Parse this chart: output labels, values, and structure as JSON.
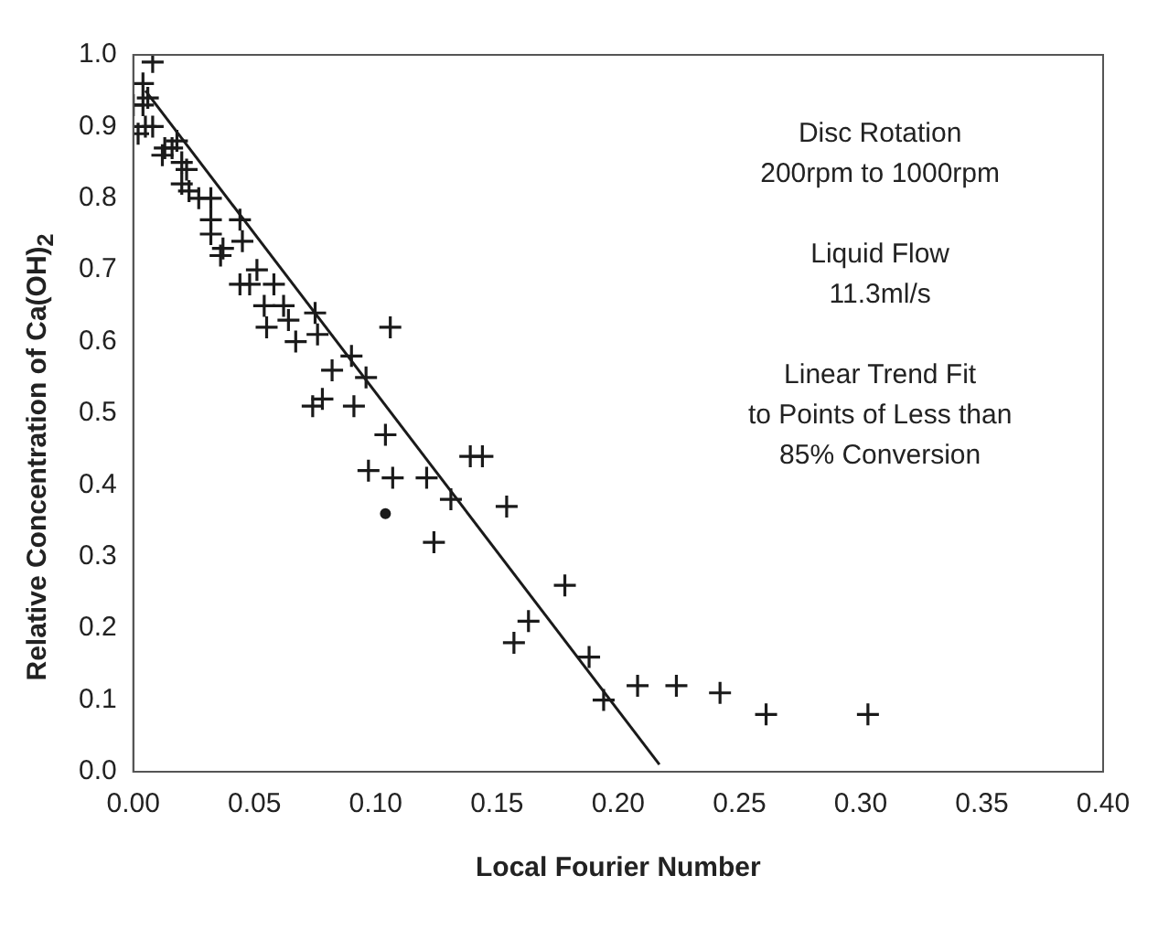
{
  "chart_data": {
    "type": "scatter",
    "xlabel": "Local Fourier Number",
    "ylabel": "Relative Concentration of Ca(OH)$_{2}$",
    "xlim": [
      0,
      0.4
    ],
    "ylim": [
      0,
      1
    ],
    "xticks": [
      {
        "value": 0,
        "label": "0.00"
      },
      {
        "value": 0.05,
        "label": "0.05"
      },
      {
        "value": 0.1,
        "label": "0.10"
      },
      {
        "value": 0.15,
        "label": "0.15"
      },
      {
        "value": 0.2,
        "label": "0.20"
      },
      {
        "value": 0.25,
        "label": "0.25"
      },
      {
        "value": 0.3,
        "label": "0.30"
      },
      {
        "value": 0.35,
        "label": "0.35"
      },
      {
        "value": 0.4,
        "label": "0.40"
      }
    ],
    "yticks": [
      {
        "value": 0,
        "label": "0.0"
      },
      {
        "value": 0.1,
        "label": "0.1"
      },
      {
        "value": 0.2,
        "label": "0.2"
      },
      {
        "value": 0.3,
        "label": "0.3"
      },
      {
        "value": 0.4,
        "label": "0.4"
      },
      {
        "value": 0.5,
        "label": "0.5"
      },
      {
        "value": 0.6,
        "label": "0.6"
      },
      {
        "value": 0.7,
        "label": "0.7"
      },
      {
        "value": 0.8,
        "label": "0.8"
      },
      {
        "value": 0.9,
        "label": "0.9"
      },
      {
        "value": 1,
        "label": "1.0"
      }
    ],
    "grid": false,
    "legend": false,
    "marker": "cross",
    "annotations": [
      "Disc Rotation\n200rpm to 1000rpm",
      "Liquid Flow\n11.3ml/s",
      "Linear Trend Fit\nto Points of Less than\n85% Conversion"
    ],
    "series": [
      {
        "type": "scatter",
        "color": "#1a1a1a",
        "x": [
          0.008,
          0.004,
          0,
          0.004,
          0.006,
          0.005,
          0.002,
          0.008,
          0.013,
          0.016,
          0.018,
          0.012,
          0.02,
          0.022,
          0.02,
          0.023,
          0.027,
          0.032,
          0.032,
          0.032,
          0.044,
          0.045,
          0.037,
          0.036,
          0.051,
          0.044,
          0.048,
          0.058,
          0.054,
          0.062,
          0.055,
          0.064,
          0.075,
          0.076,
          0.067,
          0.082,
          0.09,
          0.096,
          0.106,
          0.074,
          0.078,
          0.091,
          0.104,
          0.097,
          0.107,
          0.121,
          0.131,
          0.124,
          0.139,
          0.144,
          0.154,
          0.178,
          0.163,
          0.157,
          0.188,
          0.194,
          0.208,
          0.224,
          0.242,
          0.261,
          0.303
        ],
        "values": [
          0.99,
          0.96,
          0.93,
          0.93,
          0.94,
          0.9,
          0.89,
          0.9,
          0.87,
          0.87,
          0.88,
          0.86,
          0.85,
          0.84,
          0.82,
          0.81,
          0.8,
          0.8,
          0.77,
          0.75,
          0.77,
          0.74,
          0.73,
          0.72,
          0.7,
          0.68,
          0.68,
          0.68,
          0.65,
          0.65,
          0.62,
          0.63,
          0.64,
          0.61,
          0.6,
          0.56,
          0.58,
          0.55,
          0.62,
          0.51,
          0.52,
          0.51,
          0.47,
          0.42,
          0.41,
          0.41,
          0.38,
          0.32,
          0.44,
          0.44,
          0.37,
          0.26,
          0.21,
          0.18,
          0.16,
          0.1,
          0.12,
          0.12,
          0.11,
          0.08,
          0.08
        ]
      },
      {
        "type": "scatter",
        "color": "#1a1a1a",
        "marker": "circle",
        "x": [
          0.104
        ],
        "values": [
          0.36
        ]
      },
      {
        "type": "line",
        "color": "#1a1a1a",
        "marker": "none",
        "x": [
          0.005,
          0.217
        ],
        "values": [
          0.95,
          0.01
        ]
      }
    ]
  }
}
